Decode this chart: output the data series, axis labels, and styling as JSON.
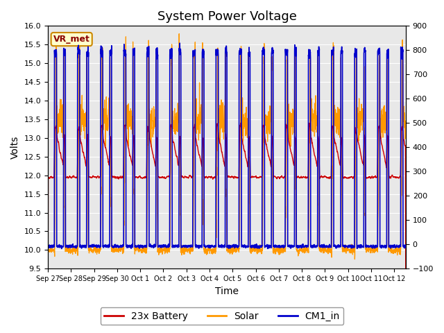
{
  "title": "System Power Voltage",
  "xlabel": "Time",
  "ylabel_left": "Volts",
  "ylim_left": [
    9.5,
    16.0
  ],
  "ylim_right": [
    -100,
    900
  ],
  "yticks_left": [
    9.5,
    10.0,
    10.5,
    11.0,
    11.5,
    12.0,
    12.5,
    13.0,
    13.5,
    14.0,
    14.5,
    15.0,
    15.5,
    16.0
  ],
  "yticks_right": [
    -100,
    0,
    100,
    200,
    300,
    400,
    500,
    600,
    700,
    800,
    900
  ],
  "xlim": [
    0,
    15.5
  ],
  "x_tick_positions": [
    0,
    1,
    2,
    3,
    4,
    5,
    6,
    7,
    8,
    9,
    10,
    11,
    12,
    13,
    14,
    15
  ],
  "x_tick_labels": [
    "Sep 27",
    "Sep 28",
    "Sep 29",
    "Sep 30",
    "Oct 1",
    "Oct 2",
    "Oct 3",
    "Oct 4",
    "Oct 5",
    "Oct 6",
    "Oct 7",
    "Oct 8",
    "Oct 9",
    "Oct 10",
    "Oct 11",
    "Oct 12"
  ],
  "bg_color": "#e8e8e8",
  "grid_color": "#ffffff",
  "line_battery_color": "#cc0000",
  "line_solar_color": "#ff9900",
  "line_cm1_color": "#0000cc",
  "vr_met_label": "VR_met",
  "vr_met_fg": "#8b0000",
  "vr_met_bg": "#ffffcc",
  "vr_met_border": "#cc8800",
  "legend_labels": [
    "23x Battery",
    "Solar",
    "CM1_in"
  ],
  "title_fontsize": 13,
  "axis_fontsize": 10,
  "tick_fontsize": 8,
  "legend_fontsize": 10
}
